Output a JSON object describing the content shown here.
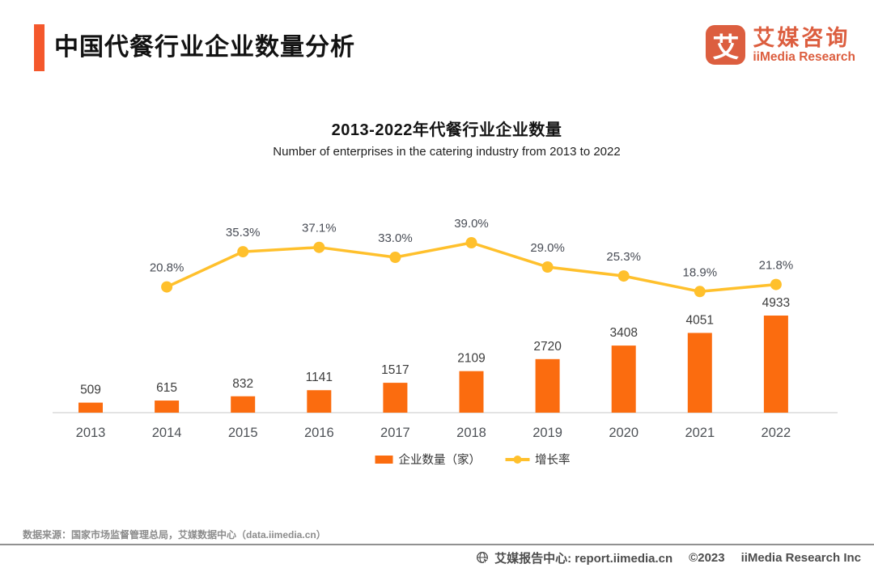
{
  "header": {
    "title": "中国代餐行业企业数量分析",
    "logo": {
      "glyph": "艾",
      "name_cn": "艾媒咨询",
      "name_en": "iiMedia Research"
    }
  },
  "chart": {
    "title": "2013-2022年代餐行业企业数量",
    "subtitle": "Number of enterprises in the catering industry from 2013 to 2022"
  },
  "chart_data": {
    "type": "bar",
    "categories": [
      "2013",
      "2014",
      "2015",
      "2016",
      "2017",
      "2018",
      "2019",
      "2020",
      "2021",
      "2022"
    ],
    "series": [
      {
        "name": "企业数量（家）",
        "type": "bar",
        "color": "#FB6C0F",
        "values": [
          509,
          615,
          832,
          1141,
          1517,
          2109,
          2720,
          3408,
          4051,
          4933
        ]
      },
      {
        "name": "增长率",
        "type": "line",
        "color": "#FFC02C",
        "values": [
          null,
          20.8,
          35.3,
          37.1,
          33.0,
          39.0,
          29.0,
          25.3,
          18.9,
          21.8
        ]
      }
    ],
    "title": "2013-2022年代餐行业企业数量",
    "xlabel": "",
    "ylabel": "",
    "grid": false,
    "legend_position": "bottom",
    "data_labels": true
  },
  "footer": {
    "source": "数据来源：国家市场监督管理总局，艾媒数据中心（data.iimedia.cn）",
    "report_center": "艾媒报告中心: report.iimedia.cn",
    "copyright": "©2023",
    "company": "iiMedia Research Inc"
  },
  "colors": {
    "bar": "#FB6C0F",
    "line": "#FFC02C",
    "accent": "#F4582C",
    "brand": "#DC5E3F"
  }
}
